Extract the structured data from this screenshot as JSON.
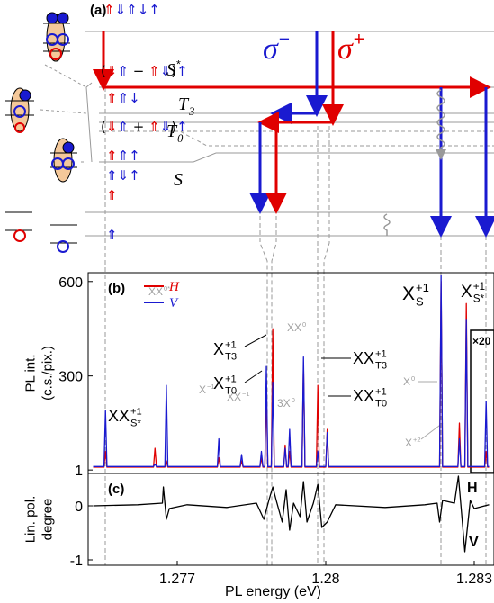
{
  "diagram": {
    "panel_label": "(a)",
    "sigma_minus": {
      "main": "σ",
      "sup": "−"
    },
    "sigma_plus": {
      "main": "σ",
      "sup": "+"
    },
    "levels": [
      {
        "main": "S",
        "sup": "*"
      },
      {
        "main": "T",
        "sub": "3"
      },
      {
        "main": "T",
        "sub": "0"
      },
      {
        "main": "S"
      }
    ],
    "spins": [
      [
        {
          "text": "⇑",
          "color": "#e00000"
        },
        {
          "text": "⇓⇑↓↑",
          "color": "#1a1ad0"
        }
      ],
      [
        {
          "text": "(",
          "color": "#000000"
        },
        {
          "text": "⇓",
          "color": "#e00000"
        },
        {
          "text": "⇑",
          "color": "#1a1ad0"
        },
        {
          "text": " − ",
          "color": "#000000"
        },
        {
          "text": "⇑",
          "color": "#e00000"
        },
        {
          "text": "⇓",
          "color": "#1a1ad0"
        },
        {
          "text": ")",
          "color": "#000000"
        },
        {
          "text": "↑",
          "color": "#1a1ad0"
        }
      ],
      [
        {
          "text": "⇑",
          "color": "#e00000"
        },
        {
          "text": "⇑↓",
          "color": "#1a1ad0"
        }
      ],
      [
        {
          "text": "(",
          "color": "#000000"
        },
        {
          "text": "⇓",
          "color": "#e00000"
        },
        {
          "text": "⇑",
          "color": "#1a1ad0"
        },
        {
          "text": " + ",
          "color": "#000000"
        },
        {
          "text": "⇑",
          "color": "#e00000"
        },
        {
          "text": "⇓",
          "color": "#1a1ad0"
        },
        {
          "text": ")",
          "color": "#000000"
        },
        {
          "text": "↑",
          "color": "#1a1ad0"
        }
      ],
      [
        {
          "text": "⇑",
          "color": "#e00000"
        },
        {
          "text": "⇑↑",
          "color": "#1a1ad0"
        }
      ],
      [
        {
          "text": "⇑⇓↑",
          "color": "#1a1ad0"
        }
      ],
      [
        {
          "text": "⇑",
          "color": "#e00000"
        }
      ],
      [
        {
          "text": "⇑",
          "color": "#1a1ad0"
        }
      ]
    ]
  },
  "chart_data": [
    {
      "type": "line",
      "panel_label": "(b)",
      "ylabel": [
        "PL int.",
        "(c.s./pix.)"
      ],
      "xlim": [
        1.2752,
        1.2834
      ],
      "ylim": [
        -10,
        628
      ],
      "yticks": [
        1,
        300,
        600
      ],
      "x": [
        1.2753,
        1.27552,
        1.27555,
        1.27558,
        1.27652,
        1.27655,
        1.27658,
        1.27675,
        1.27678,
        1.27681,
        1.27781,
        1.27784,
        1.27787,
        1.27827,
        1.2783,
        1.27833,
        1.27867,
        1.2787,
        1.27873,
        1.27877,
        1.2788,
        1.27883,
        1.2789,
        1.27893,
        1.27896,
        1.27915,
        1.27918,
        1.27921,
        1.27924,
        1.27927,
        1.2793,
        1.27952,
        1.27955,
        1.27958,
        1.27981,
        1.27984,
        1.27987,
        1.28,
        1.28003,
        1.28006,
        1.2823,
        1.28233,
        1.28236,
        1.28267,
        1.2827,
        1.28273,
        1.28281,
        1.28284,
        1.28287,
        1.28321,
        1.28324,
        1.28327,
        1.2833
      ],
      "series": [
        {
          "name": "H",
          "color": "#e00000",
          "values": [
            10,
            10,
            60,
            10,
            10,
            70,
            10,
            10,
            30,
            10,
            10,
            40,
            10,
            10,
            30,
            10,
            10,
            40,
            10,
            10,
            250,
            10,
            10,
            450,
            10,
            10,
            80,
            10,
            10,
            60,
            10,
            10,
            340,
            10,
            10,
            270,
            10,
            10,
            130,
            10,
            10,
            600,
            10,
            10,
            150,
            10,
            10,
            530,
            10,
            10,
            60,
            10,
            10
          ]
        },
        {
          "name": "V",
          "color": "#1a1ad0",
          "values": [
            12,
            12,
            190,
            12,
            12,
            20,
            12,
            12,
            270,
            12,
            12,
            100,
            12,
            12,
            50,
            12,
            12,
            60,
            12,
            12,
            330,
            12,
            12,
            280,
            12,
            12,
            70,
            12,
            12,
            130,
            12,
            12,
            360,
            12,
            12,
            60,
            12,
            12,
            120,
            12,
            12,
            620,
            12,
            12,
            100,
            12,
            12,
            480,
            12,
            12,
            220,
            12,
            12
          ]
        }
      ],
      "annotations": [
        {
          "main": "XX",
          "sub": "S*",
          "sup": "+1",
          "color": "#000000"
        },
        {
          "main": "XX",
          "sup": "0*",
          "color": "#a0a0a0"
        },
        {
          "main": "X",
          "sup": "−1",
          "color": "#a0a0a0"
        },
        {
          "main": "XX",
          "sup": "−1",
          "color": "#a0a0a0"
        },
        {
          "main": "X",
          "sub": "T3",
          "sup": "+1",
          "color": "#000000"
        },
        {
          "main": "X",
          "sub": "T0",
          "sup": "+1",
          "color": "#000000"
        },
        {
          "main": "3X",
          "sup": "0",
          "color": "#a0a0a0"
        },
        {
          "main": "XX",
          "sup": "0",
          "color": "#a0a0a0"
        },
        {
          "main": "XX",
          "sub": "T3",
          "sup": "+1",
          "color": "#000000"
        },
        {
          "main": "XX",
          "sub": "T0",
          "sup": "+1",
          "color": "#000000"
        },
        {
          "main": "X",
          "sup": "0",
          "color": "#a0a0a0"
        },
        {
          "main": "X",
          "sup": "+2",
          "color": "#a0a0a0"
        },
        {
          "main": "X",
          "sub": "S",
          "sup": "+1",
          "color": "#000000"
        },
        {
          "main": "X",
          "sub": "S*",
          "sup": "+1",
          "color": "#000000"
        }
      ],
      "inset_label": "×20"
    },
    {
      "type": "line",
      "panel_label": "(c)",
      "ylabel": [
        "Lin. pol.",
        "degree"
      ],
      "xlabel": "PL energy (eV)",
      "xlim": [
        1.2752,
        1.2834
      ],
      "ylim": [
        -1.1,
        0.6
      ],
      "xticks": [
        1.277,
        1.28,
        1.283
      ],
      "yticks": [
        -1,
        0
      ],
      "x": [
        1.2753,
        1.2762,
        1.2767,
        1.27672,
        1.27678,
        1.27684,
        1.2772,
        1.278,
        1.2786,
        1.27875,
        1.27885,
        1.27893,
        1.279,
        1.27912,
        1.2792,
        1.27927,
        1.27935,
        1.27948,
        1.27955,
        1.27962,
        1.27975,
        1.27984,
        1.27992,
        1.28003,
        1.2802,
        1.2812,
        1.282,
        1.28225,
        1.2823,
        1.28236,
        1.2826,
        1.28268,
        1.28275,
        1.28281,
        1.28292,
        1.283,
        1.2833
      ],
      "color": "#000000",
      "values": [
        0,
        0.02,
        0.05,
        0.35,
        -0.25,
        -0.05,
        0.02,
        -0.03,
        0.05,
        -0.25,
        0.1,
        0.35,
        0.1,
        -0.3,
        0.3,
        -0.45,
        0.05,
        -0.2,
        0.45,
        -0.3,
        0.05,
        0.4,
        -0.4,
        -0.3,
        0.02,
        -0.03,
        0.02,
        0.05,
        -0.3,
        0.1,
        0.05,
        0.55,
        -0.2,
        -0.85,
        0.1,
        -0.05,
        0.02
      ],
      "annotations": [
        {
          "main": "H",
          "color": "#000000"
        },
        {
          "main": "V",
          "color": "#000000"
        }
      ]
    }
  ]
}
